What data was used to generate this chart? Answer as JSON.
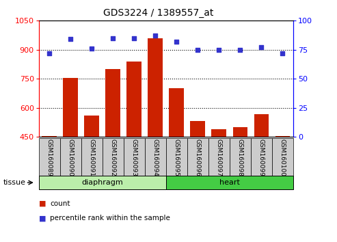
{
  "title": "GDS3224 / 1389557_at",
  "samples": [
    "GSM160089",
    "GSM160090",
    "GSM160091",
    "GSM160092",
    "GSM160093",
    "GSM160094",
    "GSM160095",
    "GSM160096",
    "GSM160097",
    "GSM160098",
    "GSM160099",
    "GSM160100"
  ],
  "counts": [
    455,
    755,
    560,
    800,
    840,
    960,
    700,
    530,
    490,
    500,
    565,
    455
  ],
  "percentiles": [
    72,
    84,
    76,
    85,
    85,
    87,
    82,
    75,
    75,
    75,
    77,
    72
  ],
  "ylim_left": [
    450,
    1050
  ],
  "ylim_right": [
    0,
    100
  ],
  "yticks_left": [
    450,
    600,
    750,
    900,
    1050
  ],
  "yticks_right": [
    0,
    25,
    50,
    75,
    100
  ],
  "bar_color": "#cc2200",
  "dot_color": "#3333cc",
  "tissue_groups": [
    {
      "label": "diaphragm",
      "start": 0,
      "end": 6,
      "color": "#bbeeaa"
    },
    {
      "label": "heart",
      "start": 6,
      "end": 12,
      "color": "#44cc44"
    }
  ],
  "tissue_label": "tissue",
  "legend_items": [
    {
      "label": "count",
      "color": "#cc2200"
    },
    {
      "label": "percentile rank within the sample",
      "color": "#3333cc"
    }
  ],
  "bar_width": 0.7,
  "base_value": 450,
  "box_color": "#cccccc",
  "title_fontsize": 10,
  "axis_fontsize": 8,
  "label_fontsize": 6.5
}
